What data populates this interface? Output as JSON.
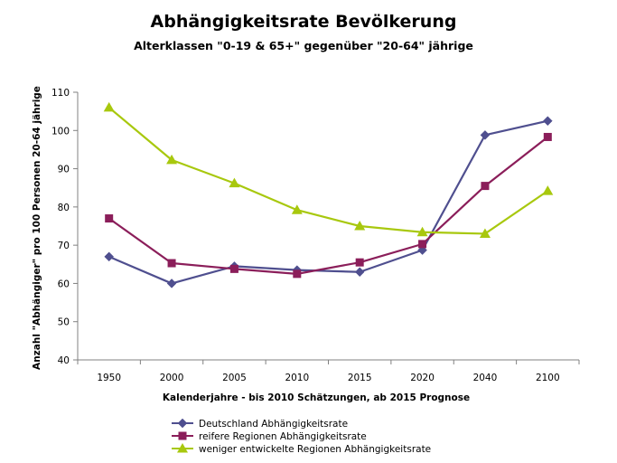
{
  "chart_data": {
    "type": "line",
    "title": "Abhängigkeitsrate Bevölkerung",
    "subtitle": "Alterklassen \"0-19 & 65+\" gegenüber \"20-64\" jährige",
    "xlabel": "Kalenderjahre - bis 2010 Schätzungen, ab 2015 Prognose",
    "ylabel": "Anzahl \"Abhängiger\" pro 100 Personen 20-64 jährige",
    "categories": [
      "1950",
      "2000",
      "2005",
      "2010",
      "2015",
      "2020",
      "2040",
      "2100"
    ],
    "ylim": [
      40,
      110
    ],
    "yticks": [
      "40",
      "50",
      "60",
      "70",
      "80",
      "90",
      "100",
      "110"
    ],
    "grid": false,
    "legend_position": "bottom",
    "series": [
      {
        "name": "Deutschland Abhängigkeitsrate",
        "marker": "diamond",
        "color": "#4F4F8F",
        "values": [
          67,
          60,
          64.5,
          63.5,
          63,
          68.7,
          98.8,
          102.5
        ]
      },
      {
        "name": "reifere Regionen Abhängigkeitsrate",
        "marker": "square",
        "color": "#8B1E5A",
        "values": [
          77,
          65.3,
          63.8,
          62.5,
          65.5,
          70.3,
          85.5,
          98.3
        ]
      },
      {
        "name": "weniger entwickelte Regionen Abhängigkeitsrate",
        "marker": "triangle",
        "color": "#A8C80E",
        "values": [
          106,
          92.3,
          86.2,
          79.2,
          75,
          73.4,
          73,
          84.2
        ]
      }
    ]
  }
}
